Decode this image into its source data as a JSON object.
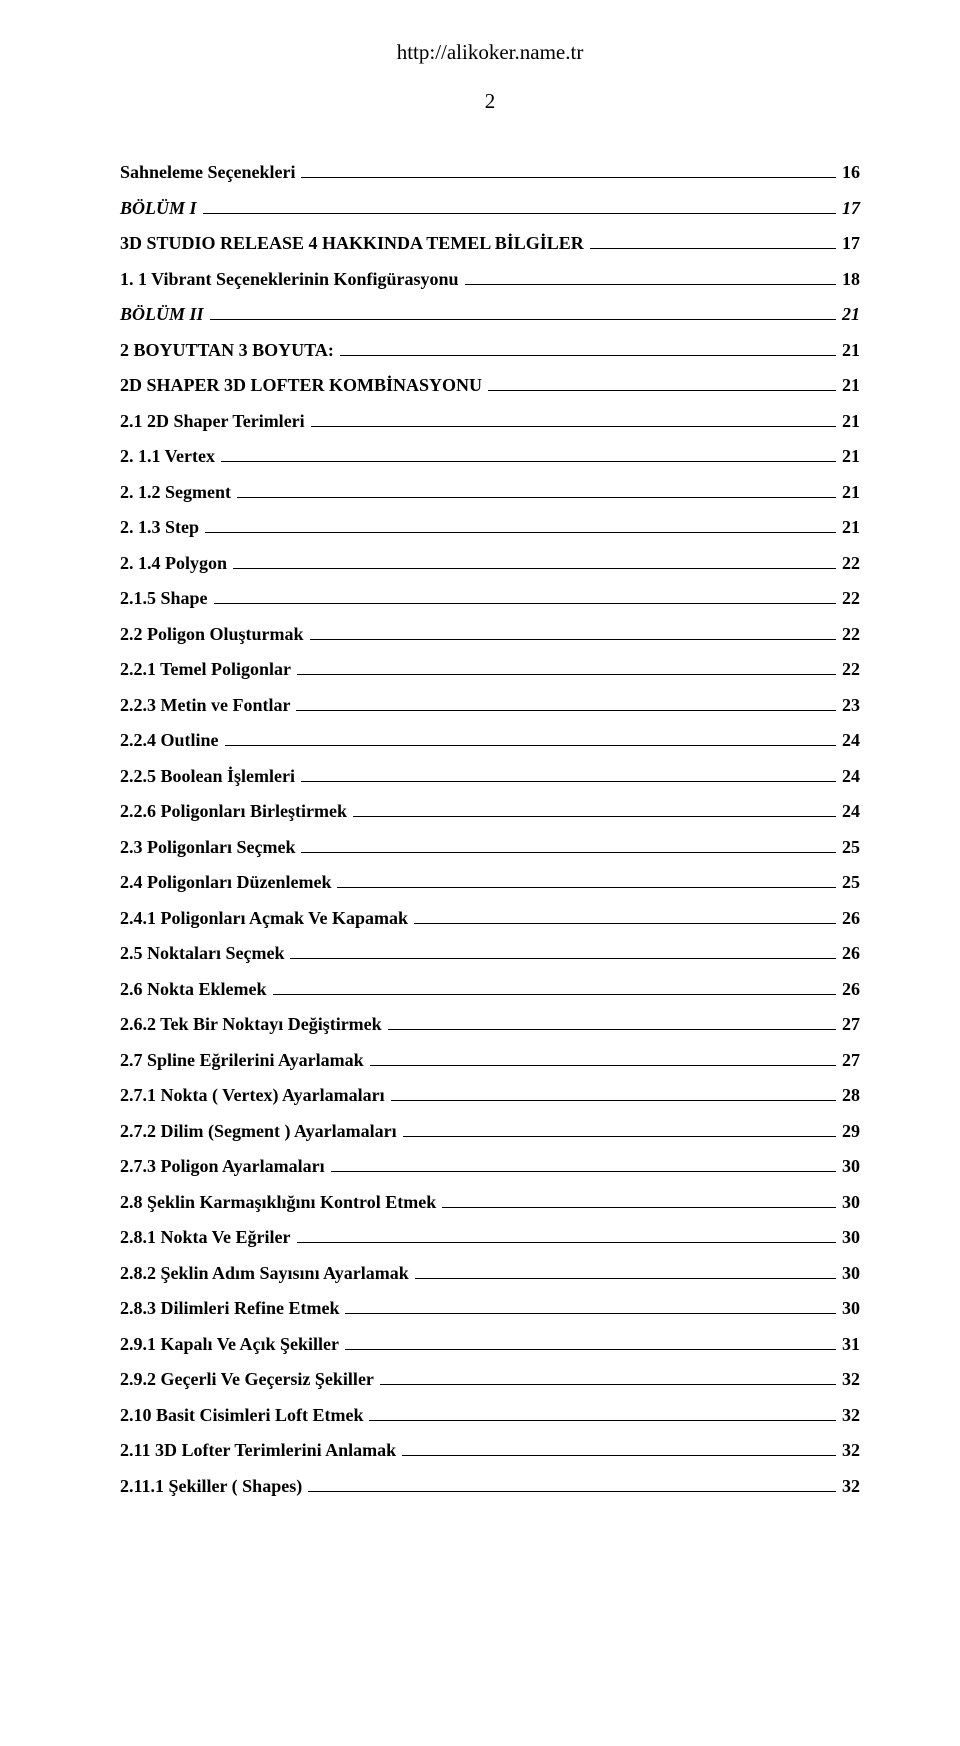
{
  "header": {
    "url": "http://alikoker.name.tr",
    "page_number": "2"
  },
  "toc": {
    "entries": [
      {
        "title": "Sahneleme  Seçenekleri",
        "page": "16",
        "italic": false
      },
      {
        "title": "BÖLÜM  I",
        "page": "17",
        "italic": true
      },
      {
        "title": "3D STUDIO RELEASE 4 HAKKINDA TEMEL  BİLGİLER",
        "page": "17",
        "italic": false
      },
      {
        "title": "1.  1 Vibrant Seçeneklerinin Konfigürasyonu",
        "page": "18",
        "italic": false
      },
      {
        "title": "BÖLÜM  II",
        "page": "21",
        "italic": true
      },
      {
        "title": "2 BOYUTTAN  3 BOYUTA:",
        "page": "21",
        "italic": false
      },
      {
        "title": "2D SHAPER 3D LOFTER KOMBİNASYONU",
        "page": "21",
        "italic": false
      },
      {
        "title": "2.1  2D Shaper  Terimleri",
        "page": "21",
        "italic": false
      },
      {
        "title": "2.  1.1   Vertex",
        "page": "21",
        "italic": false
      },
      {
        "title": "2.  1.2   Segment",
        "page": "21",
        "italic": false
      },
      {
        "title": "2.  1.3   Step",
        "page": "21",
        "italic": false
      },
      {
        "title": "2.  1.4   Polygon",
        "page": "22",
        "italic": false
      },
      {
        "title": "2.1.5    Shape",
        "page": "22",
        "italic": false
      },
      {
        "title": "2.2  Poligon  Oluşturmak",
        "page": "22",
        "italic": false
      },
      {
        "title": "2.2.1  Temel  Poligonlar",
        "page": "22",
        "italic": false
      },
      {
        "title": "2.2.3   Metin ve Fontlar",
        "page": "23",
        "italic": false
      },
      {
        "title": "2.2.4  Outline",
        "page": "24",
        "italic": false
      },
      {
        "title": "2.2.5   Boolean İşlemleri",
        "page": "24",
        "italic": false
      },
      {
        "title": "2.2.6  Poligonları  Birleştirmek",
        "page": "24",
        "italic": false
      },
      {
        "title": "2.3  Poligonları   Seçmek",
        "page": "25",
        "italic": false
      },
      {
        "title": "2.4  Poligonları Düzenlemek",
        "page": "25",
        "italic": false
      },
      {
        "title": "2.4.1   Poligonları Açmak  Ve  Kapamak",
        "page": "26",
        "italic": false
      },
      {
        "title": "2.5   Noktaları Seçmek",
        "page": "26",
        "italic": false
      },
      {
        "title": "2.6 Nokta Eklemek",
        "page": "26",
        "italic": false
      },
      {
        "title": "2.6.2  Tek Bir  Noktayı Değiştirmek",
        "page": "27",
        "italic": false
      },
      {
        "title": "2.7  Spline Eğrilerini  Ayarlamak",
        "page": "27",
        "italic": false
      },
      {
        "title": "2.7.1  Nokta ( Vertex) Ayarlamaları",
        "page": "28",
        "italic": false
      },
      {
        "title": "2.7.2  Dilim (Segment ) Ayarlamaları",
        "page": "29",
        "italic": false
      },
      {
        "title": "2.7.3  Poligon Ayarlamaları",
        "page": "30",
        "italic": false
      },
      {
        "title": "2.8  Şeklin Karmaşıklığını Kontrol Etmek",
        "page": "30",
        "italic": false
      },
      {
        "title": "2.8.1  Nokta Ve Eğriler",
        "page": "30",
        "italic": false
      },
      {
        "title": "2.8.2  Şeklin Adım Sayısını Ayarlamak",
        "page": "30",
        "italic": false
      },
      {
        "title": "2.8.3  Dilimleri Refine Etmek",
        "page": "30",
        "italic": false
      },
      {
        "title": "2.9.1  Kapalı  Ve Açık Şekiller",
        "page": "31",
        "italic": false
      },
      {
        "title": "2.9.2  Geçerli Ve Geçersiz Şekiller",
        "page": "32",
        "italic": false
      },
      {
        "title": "2.10  Basit Cisimleri Loft Etmek",
        "page": "32",
        "italic": false
      },
      {
        "title": "2.11  3D Lofter Terimlerini Anlamak",
        "page": "32",
        "italic": false
      },
      {
        "title": "2.11.1  Şekiller ( Shapes)",
        "page": "32",
        "italic": false
      }
    ]
  }
}
